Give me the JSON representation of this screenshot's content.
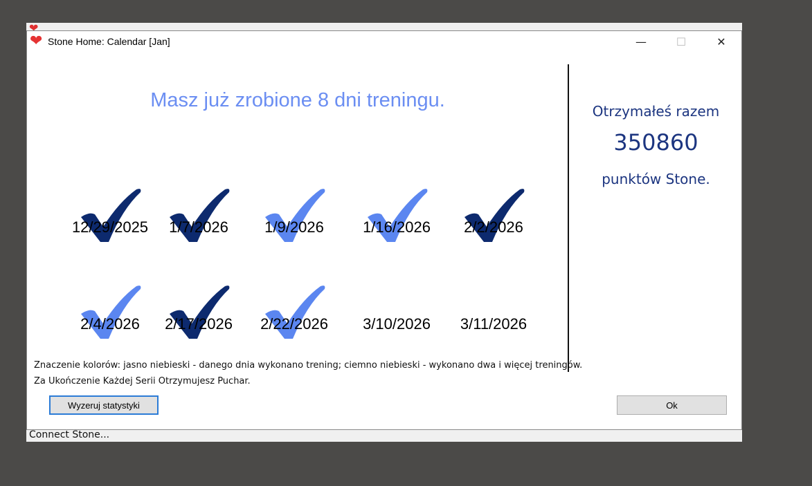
{
  "background_window": {
    "status_text": "Connect Stone..."
  },
  "window": {
    "title": "Stone Home: Calendar [Jan]",
    "icon": "heart-icon",
    "controls": {
      "minimize": "—",
      "maximize": "☐",
      "close": "✕"
    }
  },
  "headline": "Masz już zrobione 8 dni treningu.",
  "points": {
    "line1": "Otrzymałeś razem",
    "value": "350860",
    "line2": "punktów Stone."
  },
  "colors": {
    "light": "#5b86f0",
    "dark": "#0d2a6e"
  },
  "days": [
    {
      "date": "12/29/2025",
      "mark": "dark"
    },
    {
      "date": "1/7/2026",
      "mark": "dark"
    },
    {
      "date": "1/9/2026",
      "mark": "light"
    },
    {
      "date": "1/16/2026",
      "mark": "light"
    },
    {
      "date": "2/2/2026",
      "mark": "dark"
    },
    {
      "date": "2/4/2026",
      "mark": "light"
    },
    {
      "date": "2/17/2026",
      "mark": "dark"
    },
    {
      "date": "2/22/2026",
      "mark": "light"
    },
    {
      "date": "3/10/2026",
      "mark": "none"
    },
    {
      "date": "3/11/2026",
      "mark": "none"
    }
  ],
  "legend": {
    "line1": "Znaczenie kolorów: jasno niebieski - danego dnia wykonano trening; ciemno niebieski - wykonano dwa i więcej treningów.",
    "line2": "Za Ukończenie Każdej Serii Otrzymujesz Puchar."
  },
  "buttons": {
    "reset": "Wyzeruj statystyki",
    "ok": "Ok"
  }
}
